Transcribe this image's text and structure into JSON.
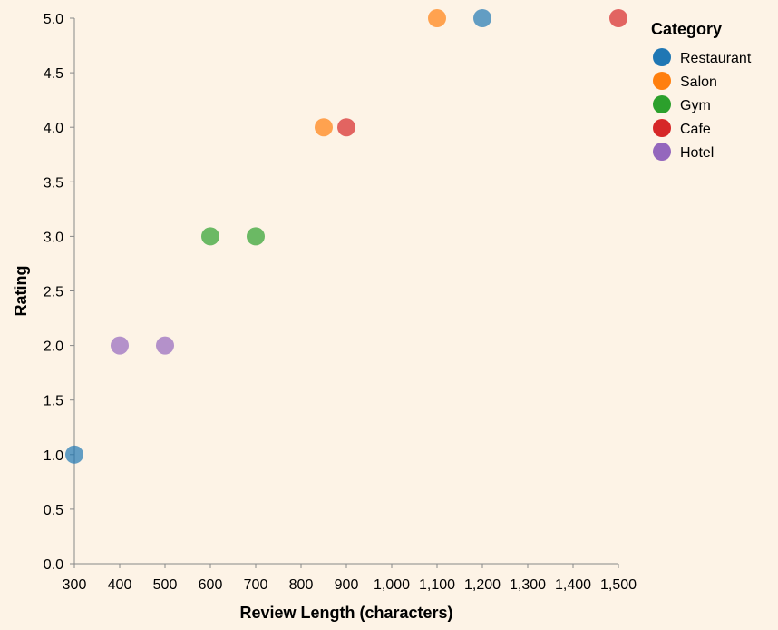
{
  "chart_data": {
    "type": "scatter",
    "title": "",
    "xlabel": "Review Length (characters)",
    "ylabel": "Rating",
    "xlim": [
      300,
      1500
    ],
    "ylim": [
      0,
      5
    ],
    "x_ticks": [
      300,
      400,
      500,
      600,
      700,
      800,
      900,
      1000,
      1100,
      1200,
      1300,
      1400,
      1500
    ],
    "y_ticks": [
      0.0,
      0.5,
      1.0,
      1.5,
      2.0,
      2.5,
      3.0,
      3.5,
      4.0,
      4.5,
      5.0
    ],
    "x_tick_labels": [
      "300",
      "400",
      "500",
      "600",
      "700",
      "800",
      "900",
      "1,000",
      "1,100",
      "1,200",
      "1,300",
      "1,400",
      "1,500"
    ],
    "y_tick_labels": [
      "0.0",
      "0.5",
      "1.0",
      "1.5",
      "2.0",
      "2.5",
      "3.0",
      "3.5",
      "4.0",
      "4.5",
      "5.0"
    ],
    "grid": false,
    "legend": {
      "title": "Category",
      "placement": "right"
    },
    "series": [
      {
        "name": "Restaurant",
        "color": "#1f77b4",
        "points": [
          {
            "x": 300,
            "y": 1.0
          },
          {
            "x": 1200,
            "y": 5.0
          }
        ]
      },
      {
        "name": "Salon",
        "color": "#ff7f0e",
        "points": [
          {
            "x": 850,
            "y": 4.0
          },
          {
            "x": 1100,
            "y": 5.0
          }
        ]
      },
      {
        "name": "Gym",
        "color": "#2ca02c",
        "points": [
          {
            "x": 600,
            "y": 3.0
          },
          {
            "x": 700,
            "y": 3.0
          }
        ]
      },
      {
        "name": "Cafe",
        "color": "#d62728",
        "points": [
          {
            "x": 900,
            "y": 4.0
          },
          {
            "x": 1500,
            "y": 5.0
          }
        ]
      },
      {
        "name": "Hotel",
        "color": "#9467bd",
        "points": [
          {
            "x": 400,
            "y": 2.0
          },
          {
            "x": 500,
            "y": 2.0
          }
        ]
      }
    ]
  }
}
